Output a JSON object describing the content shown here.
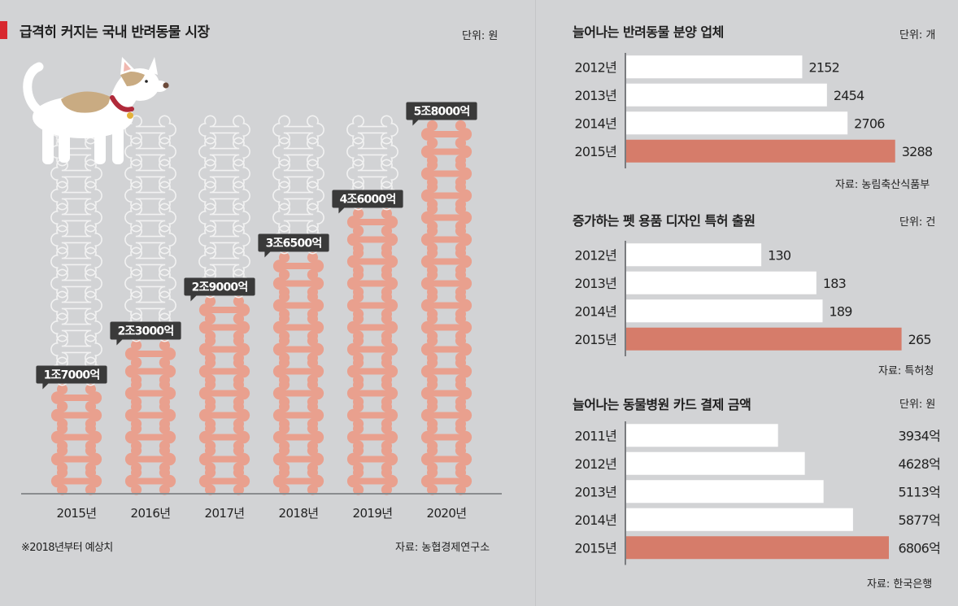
{
  "colors": {
    "accent": "#d8282f",
    "bone_fill": "#e9a08e",
    "bone_outline": "#f2f2f2",
    "bar_white": "#ffffff",
    "bar_highlight": "#d67c6a",
    "tag_bg": "#3a3a3a"
  },
  "main": {
    "title": "급격히 커지는 국내 반려동물 시장",
    "unit": "단위: 원",
    "footnote": "※2018년부터 예상치",
    "source": "자료: 농협경제연구소",
    "icons": [
      "dog-illustration",
      "bone-icon"
    ]
  },
  "chart_data": [
    {
      "type": "bar",
      "id": "market",
      "title": "급격히 커지는 국내 반려동물 시장",
      "unit": "단위: 원",
      "categories": [
        "2015년",
        "2016년",
        "2017년",
        "2018년",
        "2019년",
        "2020년"
      ],
      "values": [
        17000,
        23000,
        29000,
        36500,
        46000,
        58000
      ],
      "value_labels": [
        "1조7000억",
        "2조3000억",
        "2조9000억",
        "3조6500억",
        "4조6000억",
        "5조8000억"
      ],
      "value_unit": "억 원",
      "filled_bones": [
        4.5,
        6.5,
        8.5,
        10.5,
        12.5,
        16.5
      ],
      "total_bones": 16.5,
      "note": "※2018년부터 예상치",
      "source": "자료: 농협경제연구소"
    },
    {
      "type": "bar",
      "id": "breeders",
      "title": "늘어나는 반려동물 분양 업체",
      "unit": "단위: 개",
      "categories": [
        "2012년",
        "2013년",
        "2014년",
        "2015년"
      ],
      "values": [
        2152,
        2454,
        2706,
        3288
      ],
      "value_labels": [
        "2152",
        "2454",
        "2706",
        "3288"
      ],
      "highlight": "2015년",
      "xlim": [
        0,
        3430
      ],
      "source": "자료: 농림축산식품부"
    },
    {
      "type": "bar",
      "id": "patents",
      "title": "증가하는 펫 용품 디자인 특허 출원",
      "unit": "단위: 건",
      "categories": [
        "2012년",
        "2013년",
        "2014년",
        "2015년"
      ],
      "values": [
        130,
        183,
        189,
        265
      ],
      "value_labels": [
        "130",
        "183",
        "189",
        "265"
      ],
      "highlight": "2015년",
      "xlim": [
        0,
        270
      ],
      "source": "자료: 특허청"
    },
    {
      "type": "bar",
      "id": "hospital",
      "title": "늘어나는 동물병원 카드 결제 금액",
      "unit": "단위: 원",
      "categories": [
        "2011년",
        "2012년",
        "2013년",
        "2014년",
        "2015년"
      ],
      "values": [
        3934,
        4628,
        5113,
        5877,
        6806
      ],
      "value_labels": [
        "3934억",
        "4628억",
        "5113억",
        "5877억",
        "6806억"
      ],
      "highlight": "2015년",
      "xlim": [
        0,
        8850
      ],
      "source": "자료: 한국은행"
    }
  ]
}
